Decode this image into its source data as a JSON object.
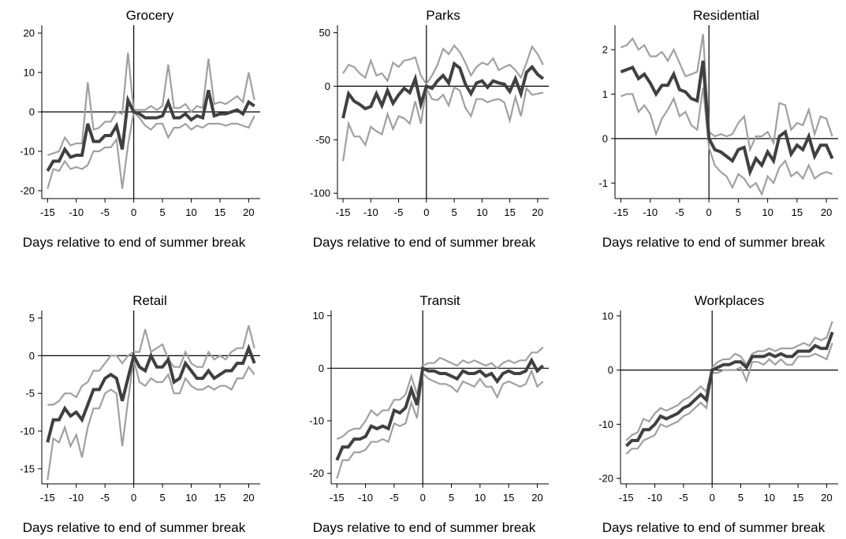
{
  "figure": {
    "xlabel": "Days relative to end of summer break"
  },
  "chart_data": [
    {
      "type": "line",
      "title": "Grocery",
      "xlabel": "Days relative to end of summer break",
      "ylabel": "",
      "xlim": [
        -16,
        22
      ],
      "ylim": [
        -22,
        22
      ],
      "xticks": [
        -15,
        -10,
        -5,
        0,
        5,
        10,
        15,
        20
      ],
      "yticks": [
        -20,
        -10,
        0,
        10,
        20
      ],
      "x": [
        -15,
        -14,
        -13,
        -12,
        -11,
        -10,
        -9,
        -8,
        -7,
        -6,
        -5,
        -4,
        -3,
        -2,
        -1,
        0,
        1,
        2,
        3,
        4,
        5,
        6,
        7,
        8,
        9,
        10,
        11,
        12,
        13,
        14,
        15,
        16,
        17,
        18,
        19,
        20,
        21
      ],
      "series": [
        {
          "role": "estimate",
          "color": "#404040",
          "values": [
            -15,
            -12.5,
            -12.5,
            -9.5,
            -11.5,
            -11,
            -11,
            -3,
            -7.5,
            -7.5,
            -6,
            -6,
            -3.5,
            -9.5,
            3,
            0,
            -0.5,
            -1.5,
            -1.5,
            -1.5,
            -1,
            2.5,
            -1.5,
            -1.5,
            -0.5,
            -2,
            -1,
            -1.5,
            5.5,
            -1,
            -0.5,
            -0.5,
            0,
            0.5,
            -0.5,
            2.5,
            1.5
          ]
        },
        {
          "role": "upper",
          "color": "#a0a0a0",
          "values": [
            -11,
            -10.5,
            -10,
            -6.5,
            -8.5,
            -8,
            -8,
            7.5,
            -4.5,
            -4,
            -2.5,
            -2.5,
            0,
            -0.5,
            15,
            0.5,
            0.5,
            0.5,
            1.5,
            0.5,
            1.5,
            12,
            1,
            1,
            2,
            0,
            1.5,
            1,
            13.5,
            2,
            2.5,
            2,
            3,
            4,
            2.5,
            10,
            3
          ]
        },
        {
          "role": "lower",
          "color": "#a0a0a0",
          "values": [
            -19.5,
            -14.5,
            -15,
            -12.5,
            -14.5,
            -14,
            -14.5,
            -13.5,
            -10,
            -10,
            -9,
            -9,
            -7,
            -19.5,
            -8.5,
            0,
            -1.5,
            -3.5,
            -4.5,
            -3,
            -3,
            -6.5,
            -4,
            -4,
            -3,
            -4.5,
            -3.5,
            -4,
            -3,
            -3,
            -3,
            -3.5,
            -3,
            -3,
            -3.5,
            -4,
            -1
          ]
        }
      ]
    },
    {
      "type": "line",
      "title": "Parks",
      "xlabel": "Days relative to end of summer break",
      "ylabel": "",
      "xlim": [
        -16,
        22
      ],
      "ylim": [
        -105,
        57
      ],
      "xticks": [
        -15,
        -10,
        -5,
        0,
        5,
        10,
        15,
        20
      ],
      "yticks": [
        -100,
        -50,
        0,
        50
      ],
      "x": [
        -15,
        -14,
        -13,
        -12,
        -11,
        -10,
        -9,
        -8,
        -7,
        -6,
        -5,
        -4,
        -3,
        -2,
        -1,
        0,
        1,
        2,
        3,
        4,
        5,
        6,
        7,
        8,
        9,
        10,
        11,
        12,
        13,
        14,
        15,
        16,
        17,
        18,
        19,
        20,
        21
      ],
      "series": [
        {
          "role": "estimate",
          "color": "#404040",
          "values": [
            -30,
            -7,
            -14,
            -17,
            -21,
            -19,
            -7,
            -18,
            -4,
            -16,
            -8,
            -2,
            -6,
            7,
            -17,
            0,
            -2,
            5,
            10,
            3,
            21,
            17,
            2,
            -7,
            3,
            5,
            -1,
            5,
            3,
            2,
            -5,
            7,
            -7,
            13,
            18,
            11,
            7
          ]
        },
        {
          "role": "upper",
          "color": "#a0a0a0",
          "values": [
            12,
            20,
            18,
            12,
            8,
            24,
            10,
            12,
            5,
            22,
            18,
            24,
            25,
            27,
            10,
            2,
            10,
            20,
            35,
            30,
            38,
            32,
            22,
            10,
            18,
            22,
            20,
            26,
            15,
            18,
            20,
            15,
            8,
            22,
            37,
            30,
            20
          ]
        },
        {
          "role": "lower",
          "color": "#a0a0a0",
          "values": [
            -70,
            -35,
            -47,
            -47,
            -55,
            -38,
            -42,
            -45,
            -26,
            -40,
            -28,
            -30,
            -35,
            -14,
            -35,
            -2,
            -12,
            -13,
            -8,
            -18,
            -1,
            -4,
            -20,
            -28,
            -12,
            -12,
            -15,
            -13,
            -12,
            -15,
            -32,
            -10,
            -28,
            -2,
            -8,
            -7,
            -6
          ]
        }
      ]
    },
    {
      "type": "line",
      "title": "Residential",
      "xlabel": "Days relative to end of summer break",
      "ylabel": "",
      "xlim": [
        -16,
        22
      ],
      "ylim": [
        -1.35,
        2.55
      ],
      "xticks": [
        -15,
        -10,
        -5,
        0,
        5,
        10,
        15,
        20
      ],
      "yticks": [
        -1,
        0,
        1,
        2
      ],
      "x": [
        -15,
        -14,
        -13,
        -12,
        -11,
        -10,
        -9,
        -8,
        -7,
        -6,
        -5,
        -4,
        -3,
        -2,
        -1,
        0,
        1,
        2,
        3,
        4,
        5,
        6,
        7,
        8,
        9,
        10,
        11,
        12,
        13,
        14,
        15,
        16,
        17,
        18,
        19,
        20,
        21
      ],
      "series": [
        {
          "role": "estimate",
          "color": "#404040",
          "values": [
            1.5,
            1.55,
            1.6,
            1.35,
            1.45,
            1.25,
            1.0,
            1.2,
            1.2,
            1.45,
            1.1,
            1.05,
            0.9,
            0.85,
            1.75,
            0,
            -0.25,
            -0.3,
            -0.4,
            -0.5,
            -0.25,
            -0.2,
            -0.75,
            -0.45,
            -0.6,
            -0.3,
            -0.5,
            0.05,
            0.15,
            -0.35,
            -0.15,
            -0.25,
            0.05,
            -0.4,
            -0.15,
            -0.15,
            -0.45
          ]
        },
        {
          "role": "upper",
          "color": "#a0a0a0",
          "values": [
            2.05,
            2.1,
            2.25,
            2.0,
            2.1,
            1.85,
            1.85,
            1.95,
            1.75,
            2.0,
            1.7,
            1.4,
            1.45,
            1.5,
            2.35,
            0.15,
            0.05,
            0.1,
            0.05,
            0.1,
            0.35,
            0.5,
            -0.25,
            0.05,
            0.05,
            0.15,
            -0.1,
            0.8,
            0.75,
            0.2,
            0.35,
            0.3,
            0.65,
            0.1,
            0.5,
            0.45,
            0.05
          ]
        },
        {
          "role": "lower",
          "color": "#a0a0a0",
          "values": [
            0.95,
            1.0,
            1.0,
            0.6,
            0.75,
            0.55,
            0.1,
            0.45,
            0.65,
            0.9,
            0.5,
            0.6,
            0.3,
            0.2,
            1.15,
            -0.2,
            -0.6,
            -0.75,
            -0.85,
            -1.1,
            -0.8,
            -0.9,
            -1.1,
            -1.0,
            -1.25,
            -0.85,
            -1.0,
            -0.65,
            -0.5,
            -0.85,
            -0.75,
            -0.9,
            -0.6,
            -0.9,
            -0.8,
            -0.75,
            -0.8
          ]
        }
      ]
    },
    {
      "type": "line",
      "title": "Retail",
      "xlabel": "Days relative to end of summer break",
      "ylabel": "",
      "xlim": [
        -16,
        22
      ],
      "ylim": [
        -17,
        6
      ],
      "xticks": [
        -15,
        -10,
        -5,
        0,
        5,
        10,
        15,
        20
      ],
      "yticks": [
        -15,
        -10,
        -5,
        0,
        5
      ],
      "x": [
        -15,
        -14,
        -13,
        -12,
        -11,
        -10,
        -9,
        -8,
        -7,
        -6,
        -5,
        -4,
        -3,
        -2,
        -1,
        0,
        1,
        2,
        3,
        4,
        5,
        6,
        7,
        8,
        9,
        10,
        11,
        12,
        13,
        14,
        15,
        16,
        17,
        18,
        19,
        20,
        21
      ],
      "series": [
        {
          "role": "estimate",
          "color": "#404040",
          "values": [
            -11.5,
            -8.5,
            -8.5,
            -7,
            -8,
            -7.5,
            -8.5,
            -6.5,
            -4.5,
            -4.5,
            -3,
            -2.5,
            -3,
            -6,
            -3,
            0,
            -1.5,
            -2,
            0,
            -1.5,
            -1.5,
            -0.5,
            -3.5,
            -3,
            -1,
            -2,
            -3,
            -3,
            -2,
            -3,
            -2.5,
            -2,
            -2,
            -1,
            -1,
            1,
            -1
          ]
        },
        {
          "role": "upper",
          "color": "#a0a0a0",
          "values": [
            -6.5,
            -6.5,
            -6,
            -5,
            -5,
            -5.5,
            -4,
            -3.5,
            -2,
            -2,
            -1,
            0,
            0,
            -1,
            0,
            0.5,
            0.5,
            3.5,
            0.5,
            1,
            1.5,
            -0.5,
            -1.5,
            -1.5,
            0.5,
            -1,
            -1.5,
            -1.5,
            0.5,
            -0.5,
            0,
            -0.5,
            0.5,
            1,
            1,
            4,
            1
          ]
        },
        {
          "role": "lower",
          "color": "#a0a0a0",
          "values": [
            -16.5,
            -11,
            -11.5,
            -9.5,
            -12,
            -10.5,
            -13.5,
            -9.5,
            -7,
            -7,
            -5,
            -4.5,
            -5,
            -12,
            -6,
            -0.5,
            -3.5,
            -4,
            -3,
            -3.5,
            -3.5,
            -2.5,
            -5,
            -5,
            -3,
            -4,
            -4.5,
            -4.5,
            -4,
            -4.5,
            -4,
            -4,
            -4.5,
            -3,
            -3,
            -1.5,
            -2.5
          ]
        }
      ]
    },
    {
      "type": "line",
      "title": "Transit",
      "xlabel": "Days relative to end of summer break",
      "ylabel": "",
      "xlim": [
        -16,
        22
      ],
      "ylim": [
        -22,
        11
      ],
      "xticks": [
        -15,
        -10,
        -5,
        0,
        5,
        10,
        15,
        20
      ],
      "yticks": [
        -20,
        -10,
        0,
        10
      ],
      "x": [
        -15,
        -14,
        -13,
        -12,
        -11,
        -10,
        -9,
        -8,
        -7,
        -6,
        -5,
        -4,
        -3,
        -2,
        -1,
        0,
        1,
        2,
        3,
        4,
        5,
        6,
        7,
        8,
        9,
        10,
        11,
        12,
        13,
        14,
        15,
        16,
        17,
        18,
        19,
        20,
        21
      ],
      "series": [
        {
          "role": "estimate",
          "color": "#404040",
          "values": [
            -17.5,
            -15,
            -15,
            -13.5,
            -13.5,
            -13,
            -11,
            -11.5,
            -11,
            -11.5,
            -8,
            -8.5,
            -7.5,
            -4,
            -7,
            0,
            -0.5,
            -0.5,
            -1,
            -1,
            -1.5,
            -2,
            -0.5,
            -1,
            -1,
            -0.5,
            -1.5,
            -1,
            -2.5,
            -1,
            -0.5,
            -1,
            -1,
            -0.5,
            1.5,
            -0.5,
            0.5
          ]
        },
        {
          "role": "upper",
          "color": "#a0a0a0",
          "values": [
            -13.5,
            -13,
            -12,
            -11.5,
            -11.5,
            -10,
            -8,
            -9,
            -8,
            -8,
            -6,
            -6,
            -5,
            -1.5,
            -5,
            0.5,
            1,
            1,
            2,
            1.5,
            1,
            0.5,
            1.5,
            1,
            1.5,
            1,
            0.5,
            1,
            0,
            1,
            1.5,
            1,
            1.5,
            1.5,
            3,
            3,
            4
          ]
        },
        {
          "role": "lower",
          "color": "#a0a0a0",
          "values": [
            -21,
            -17.5,
            -17.5,
            -16,
            -16,
            -15.5,
            -14,
            -14,
            -13.5,
            -14,
            -10.5,
            -11,
            -10.5,
            -6.5,
            -9.5,
            -1,
            -2,
            -2.5,
            -3,
            -3,
            -3.5,
            -4.5,
            -2.5,
            -3,
            -3.5,
            -2,
            -3.5,
            -3.5,
            -5.5,
            -3,
            -2.5,
            -3,
            -3.5,
            -3,
            -0.5,
            -3.5,
            -2.5
          ]
        }
      ]
    },
    {
      "type": "line",
      "title": "Workplaces",
      "xlabel": "Days relative to end of summer break",
      "ylabel": "",
      "xlim": [
        -16,
        22
      ],
      "ylim": [
        -21,
        11
      ],
      "xticks": [
        -15,
        -10,
        -5,
        0,
        5,
        10,
        15,
        20
      ],
      "yticks": [
        -20,
        -10,
        0,
        10
      ],
      "x": [
        -15,
        -14,
        -13,
        -12,
        -11,
        -10,
        -9,
        -8,
        -7,
        -6,
        -5,
        -4,
        -3,
        -2,
        -1,
        0,
        1,
        2,
        3,
        4,
        5,
        6,
        7,
        8,
        9,
        10,
        11,
        12,
        13,
        14,
        15,
        16,
        17,
        18,
        19,
        20,
        21
      ],
      "series": [
        {
          "role": "estimate",
          "color": "#404040",
          "values": [
            -14,
            -13,
            -13,
            -11,
            -11,
            -10,
            -8.5,
            -9,
            -8.5,
            -8,
            -7,
            -6.5,
            -5.5,
            -4.5,
            -5.5,
            0,
            0.5,
            1,
            1,
            1.5,
            1.5,
            0.5,
            2.5,
            2.5,
            2.5,
            3,
            2.5,
            3,
            2.5,
            2.5,
            3.5,
            3.5,
            3.5,
            4.5,
            4,
            4,
            7
          ]
        },
        {
          "role": "upper",
          "color": "#a0a0a0",
          "values": [
            -13,
            -12,
            -11.5,
            -9,
            -9.5,
            -8,
            -7,
            -7.5,
            -7,
            -6.5,
            -5.5,
            -5,
            -4,
            -3,
            -4,
            0.5,
            1.5,
            2,
            2,
            3,
            2.5,
            1,
            3,
            3.5,
            3.5,
            4,
            3.5,
            4,
            4,
            4,
            4.5,
            5,
            4.5,
            6,
            5.5,
            6,
            9
          ]
        },
        {
          "role": "lower",
          "color": "#a0a0a0",
          "values": [
            -15.5,
            -14.5,
            -14.5,
            -13,
            -12.5,
            -12,
            -10,
            -10.5,
            -10,
            -9.5,
            -8.5,
            -8,
            -7,
            -6,
            -7,
            -0.5,
            -0.5,
            0,
            0,
            0,
            0.5,
            -2,
            1.5,
            1.5,
            1,
            2,
            1,
            2,
            1,
            1,
            2.5,
            2.5,
            2.5,
            3,
            2.5,
            2,
            5
          ]
        }
      ]
    }
  ]
}
